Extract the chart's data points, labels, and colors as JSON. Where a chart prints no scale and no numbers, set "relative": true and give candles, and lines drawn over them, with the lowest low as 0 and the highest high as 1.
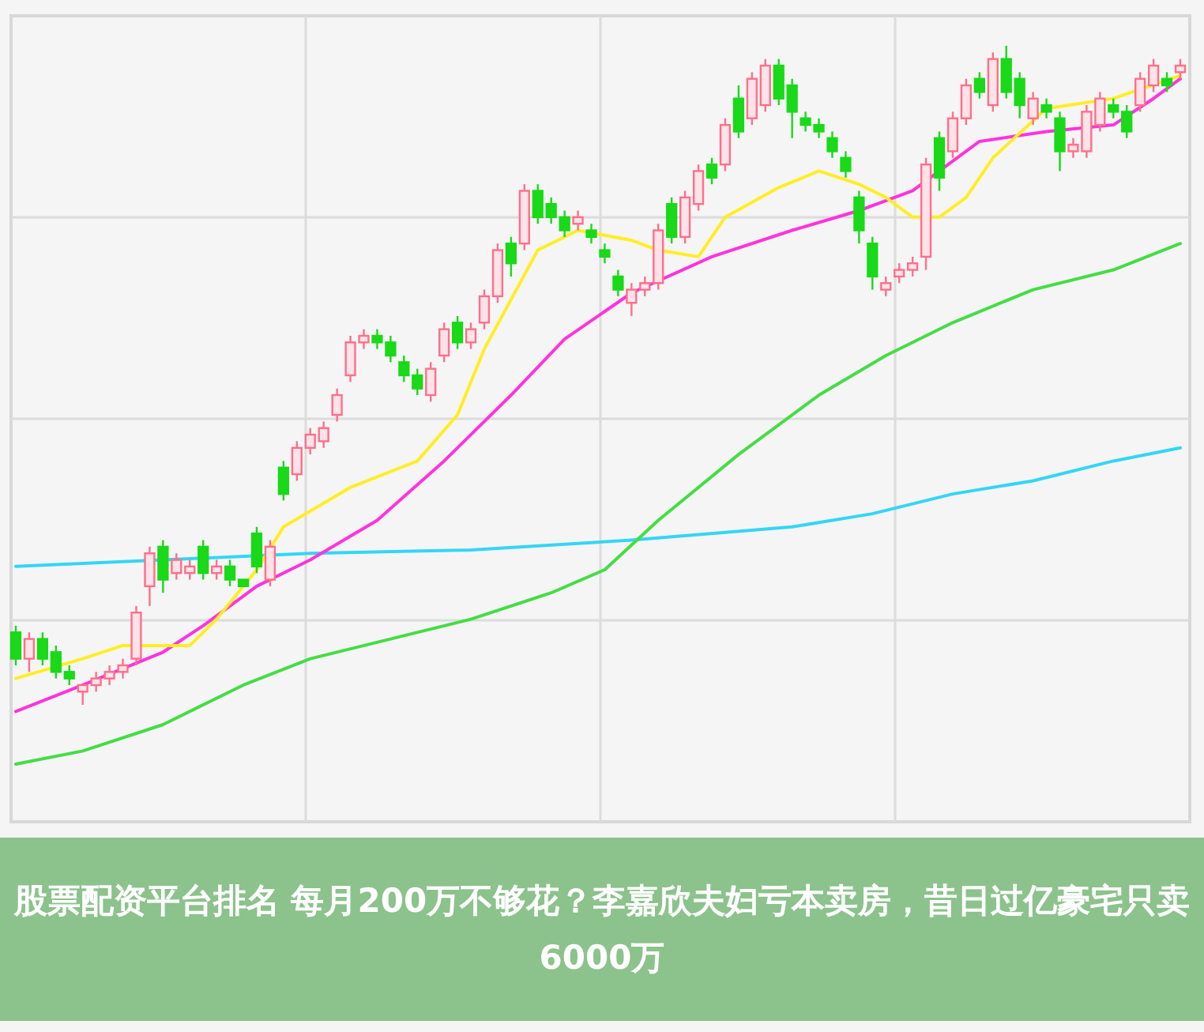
{
  "chart_data": {
    "type": "candlestick",
    "title": "股票配资平台排名 每月200万不够花？李嘉欣夫妇亏本卖房，昔日过亿豪宅只卖6000万",
    "relative": true,
    "grid": true,
    "categories": [
      null,
      null,
      null,
      null,
      null,
      null,
      null,
      null,
      null,
      null,
      null,
      null,
      null,
      null,
      null,
      null,
      null,
      null,
      null,
      null,
      null,
      null,
      null,
      null,
      null,
      null,
      null,
      null,
      null,
      null,
      null,
      null,
      null,
      null,
      null,
      null,
      null,
      null,
      null,
      null,
      null,
      null,
      null,
      null,
      null,
      null,
      null,
      null,
      null,
      null,
      null,
      null,
      null,
      null,
      null,
      null,
      null,
      null,
      null,
      null,
      null,
      null,
      null,
      null,
      null,
      null,
      null,
      null,
      null,
      null,
      null,
      null,
      null,
      null,
      null,
      null,
      null,
      null,
      null,
      null,
      null,
      null,
      null,
      null,
      null,
      null,
      null,
      null
    ],
    "ohlc": [
      [
        0.11,
        0.12,
        0.06,
        0.07
      ],
      [
        0.07,
        0.11,
        0.05,
        0.1
      ],
      [
        0.1,
        0.11,
        0.06,
        0.07
      ],
      [
        0.08,
        0.09,
        0.04,
        0.05
      ],
      [
        0.05,
        0.06,
        0.03,
        0.04
      ],
      [
        0.02,
        0.03,
        0,
        0.03
      ],
      [
        0.03,
        0.05,
        0.02,
        0.04
      ],
      [
        0.04,
        0.06,
        0.03,
        0.05
      ],
      [
        0.05,
        0.07,
        0.04,
        0.06
      ],
      [
        0.07,
        0.15,
        0.06,
        0.14
      ],
      [
        0.18,
        0.24,
        0.15,
        0.23
      ],
      [
        0.24,
        0.25,
        0.17,
        0.19
      ],
      [
        0.2,
        0.23,
        0.19,
        0.22
      ],
      [
        0.2,
        0.22,
        0.19,
        0.21
      ],
      [
        0.24,
        0.25,
        0.19,
        0.2
      ],
      [
        0.2,
        0.22,
        0.19,
        0.21
      ],
      [
        0.21,
        0.22,
        0.18,
        0.19
      ],
      [
        0.19,
        0.19,
        0.18,
        0.18
      ],
      [
        0.26,
        0.27,
        0.2,
        0.21
      ],
      [
        0.19,
        0.25,
        0.18,
        0.24
      ],
      [
        0.36,
        0.37,
        0.31,
        0.32
      ],
      [
        0.35,
        0.4,
        0.34,
        0.39
      ],
      [
        0.39,
        0.42,
        0.38,
        0.41
      ],
      [
        0.4,
        0.43,
        0.39,
        0.42
      ],
      [
        0.44,
        0.48,
        0.43,
        0.47
      ],
      [
        0.5,
        0.56,
        0.49,
        0.55
      ],
      [
        0.55,
        0.57,
        0.54,
        0.56
      ],
      [
        0.56,
        0.57,
        0.54,
        0.55
      ],
      [
        0.55,
        0.56,
        0.52,
        0.53
      ],
      [
        0.52,
        0.53,
        0.49,
        0.5
      ],
      [
        0.5,
        0.51,
        0.47,
        0.48
      ],
      [
        0.47,
        0.52,
        0.46,
        0.51
      ],
      [
        0.53,
        0.58,
        0.52,
        0.57
      ],
      [
        0.58,
        0.59,
        0.54,
        0.55
      ],
      [
        0.55,
        0.58,
        0.54,
        0.57
      ],
      [
        0.58,
        0.63,
        0.57,
        0.62
      ],
      [
        0.62,
        0.7,
        0.61,
        0.69
      ],
      [
        0.7,
        0.71,
        0.65,
        0.67
      ],
      [
        0.7,
        0.79,
        0.69,
        0.78
      ],
      [
        0.78,
        0.79,
        0.73,
        0.74
      ],
      [
        0.76,
        0.77,
        0.73,
        0.74
      ],
      [
        0.74,
        0.75,
        0.71,
        0.72
      ],
      [
        0.73,
        0.75,
        0.72,
        0.74
      ],
      [
        0.72,
        0.73,
        0.7,
        0.71
      ],
      [
        0.69,
        0.7,
        0.67,
        0.68
      ],
      [
        0.65,
        0.66,
        0.62,
        0.63
      ],
      [
        0.61,
        0.64,
        0.59,
        0.63
      ],
      [
        0.63,
        0.65,
        0.62,
        0.64
      ],
      [
        0.64,
        0.73,
        0.63,
        0.72
      ],
      [
        0.76,
        0.77,
        0.7,
        0.71
      ],
      [
        0.71,
        0.78,
        0.7,
        0.77
      ],
      [
        0.76,
        0.82,
        0.75,
        0.81
      ],
      [
        0.82,
        0.83,
        0.79,
        0.8
      ],
      [
        0.82,
        0.89,
        0.81,
        0.88
      ],
      [
        0.92,
        0.94,
        0.86,
        0.87
      ],
      [
        0.89,
        0.96,
        0.88,
        0.95
      ],
      [
        0.91,
        0.98,
        0.9,
        0.97
      ],
      [
        0.97,
        0.98,
        0.91,
        0.92
      ],
      [
        0.94,
        0.95,
        0.86,
        0.9
      ],
      [
        0.89,
        0.9,
        0.87,
        0.88
      ],
      [
        0.88,
        0.89,
        0.86,
        0.87
      ],
      [
        0.86,
        0.87,
        0.83,
        0.84
      ],
      [
        0.83,
        0.84,
        0.8,
        0.81
      ],
      [
        0.77,
        0.78,
        0.7,
        0.72
      ],
      [
        0.7,
        0.71,
        0.63,
        0.65
      ],
      [
        0.63,
        0.65,
        0.62,
        0.64
      ],
      [
        0.65,
        0.67,
        0.64,
        0.66
      ],
      [
        0.66,
        0.68,
        0.65,
        0.67
      ],
      [
        0.68,
        0.83,
        0.66,
        0.82
      ],
      [
        0.86,
        0.87,
        0.78,
        0.8
      ],
      [
        0.84,
        0.9,
        0.83,
        0.89
      ],
      [
        0.89,
        0.95,
        0.88,
        0.94
      ],
      [
        0.95,
        0.96,
        0.92,
        0.93
      ],
      [
        0.91,
        0.99,
        0.9,
        0.98
      ],
      [
        0.98,
        1,
        0.92,
        0.93
      ],
      [
        0.95,
        0.96,
        0.89,
        0.91
      ],
      [
        0.89,
        0.93,
        0.88,
        0.92
      ],
      [
        0.91,
        0.92,
        0.89,
        0.9
      ],
      [
        0.89,
        0.9,
        0.81,
        0.84
      ],
      [
        0.84,
        0.86,
        0.83,
        0.85
      ],
      [
        0.84,
        0.91,
        0.83,
        0.9
      ],
      [
        0.88,
        0.93,
        0.87,
        0.92
      ],
      [
        0.91,
        0.92,
        0.89,
        0.9
      ],
      [
        0.9,
        0.91,
        0.86,
        0.87
      ],
      [
        0.91,
        0.96,
        0.9,
        0.95
      ],
      [
        0.94,
        0.98,
        0.93,
        0.97
      ],
      [
        0.95,
        0.96,
        0.93,
        0.94
      ],
      [
        0.96,
        0.98,
        0.95,
        0.97
      ]
    ],
    "series": [
      {
        "type": "line",
        "color": "#33d6f5",
        "values": [
          0.21,
          null,
          null,
          null,
          null,
          null,
          null,
          null,
          null,
          null,
          null,
          0.22,
          null,
          null,
          null,
          null,
          null,
          null,
          null,
          null,
          null,
          null,
          0.23,
          null,
          null,
          null,
          null,
          null,
          null,
          null,
          null,
          null,
          null,
          null,
          0.235,
          null,
          null,
          null,
          null,
          null,
          null,
          null,
          null,
          null,
          null,
          null,
          0.25,
          null,
          null,
          null,
          null,
          null,
          null,
          null,
          null,
          null,
          null,
          null,
          0.27,
          null,
          null,
          null,
          null,
          null,
          0.29,
          null,
          null,
          null,
          null,
          null,
          0.32,
          null,
          null,
          null,
          null,
          null,
          0.34,
          null,
          null,
          null,
          null,
          null,
          0.37,
          null,
          null,
          null,
          null,
          0.39
        ]
      },
      {
        "type": "line",
        "color": "#44dd44",
        "values": [
          -0.09,
          null,
          null,
          null,
          null,
          -0.07,
          null,
          null,
          null,
          null,
          null,
          -0.03,
          null,
          null,
          null,
          null,
          null,
          0.03,
          null,
          null,
          null,
          null,
          0.07,
          null,
          null,
          null,
          null,
          null,
          0.1,
          null,
          null,
          null,
          null,
          null,
          0.13,
          null,
          null,
          null,
          null,
          null,
          0.17,
          null,
          null,
          null,
          0.205,
          null,
          null,
          null,
          0.28,
          null,
          null,
          null,
          null,
          null,
          0.38,
          null,
          null,
          null,
          null,
          null,
          0.47,
          null,
          null,
          null,
          null,
          0.53,
          null,
          null,
          null,
          null,
          0.58,
          null,
          null,
          null,
          null,
          null,
          0.63,
          null,
          null,
          null,
          null,
          null,
          0.66,
          null,
          null,
          null,
          null,
          0.7
        ]
      },
      {
        "type": "line",
        "color": "#ff33dd",
        "values": [
          -0.01,
          null,
          null,
          null,
          null,
          0.03,
          null,
          null,
          null,
          null,
          null,
          0.08,
          null,
          null,
          0.12,
          null,
          null,
          null,
          0.18,
          null,
          null,
          null,
          0.22,
          null,
          null,
          null,
          null,
          0.28,
          null,
          null,
          null,
          null,
          0.37,
          null,
          null,
          null,
          null,
          0.47,
          null,
          null,
          null,
          0.555,
          null,
          null,
          null,
          null,
          0.625,
          null,
          null,
          null,
          null,
          null,
          0.68,
          null,
          null,
          null,
          null,
          null,
          0.72,
          null,
          null,
          null,
          null,
          0.75,
          null,
          null,
          null,
          0.78,
          null,
          null,
          null,
          null,
          0.855,
          null,
          null,
          null,
          null,
          0.87,
          null,
          null,
          null,
          null,
          0.88,
          null,
          null,
          0.92,
          null,
          0.95
        ]
      },
      {
        "type": "line",
        "color": "#ffee22",
        "values": [
          0.04,
          null,
          null,
          null,
          null,
          0.07,
          null,
          null,
          0.09,
          null,
          null,
          null,
          null,
          0.09,
          null,
          0.13,
          null,
          null,
          0.205,
          null,
          0.27,
          null,
          null,
          null,
          null,
          0.33,
          null,
          null,
          null,
          null,
          0.37,
          null,
          null,
          0.44,
          null,
          0.54,
          null,
          null,
          null,
          0.69,
          null,
          null,
          0.72,
          null,
          null,
          null,
          0.705,
          null,
          0.69,
          null,
          null,
          0.68,
          null,
          0.74,
          null,
          null,
          null,
          0.785,
          null,
          null,
          0.81,
          null,
          null,
          0.79,
          null,
          0.77,
          null,
          0.74,
          null,
          0.74,
          null,
          0.77,
          null,
          0.83,
          null,
          null,
          null,
          0.905,
          null,
          null,
          null,
          null,
          0.92,
          null,
          null,
          null,
          null,
          0.955
        ]
      }
    ]
  }
}
